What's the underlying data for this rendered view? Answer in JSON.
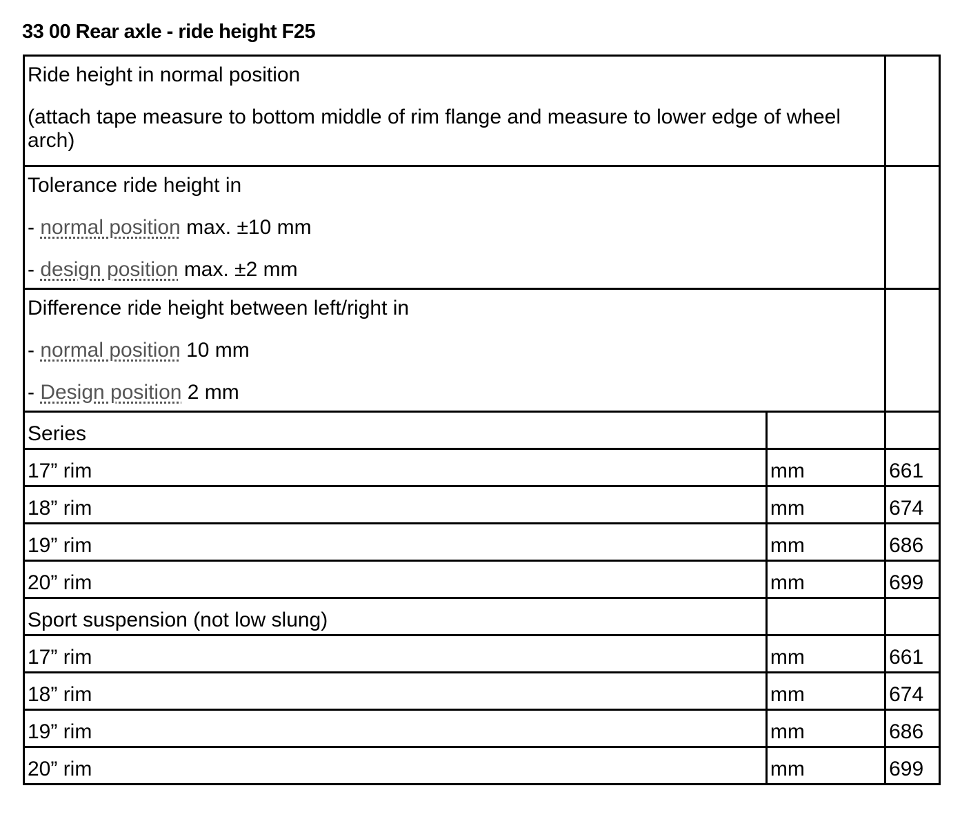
{
  "title": "33 00 Rear axle - ride height F25",
  "normal": {
    "line1": "Ride height in normal position",
    "line2": "(attach tape measure to bottom middle of rim flange and measure to lower edge of wheel arch)"
  },
  "tolerance": {
    "heading": "Tolerance ride height in",
    "items": [
      {
        "prefix": "- ",
        "link": "normal position",
        "suffix": " max. ±10 mm"
      },
      {
        "prefix": "- ",
        "link": "design position",
        "suffix": " max. ±2 mm"
      }
    ]
  },
  "difference": {
    "heading": "Difference ride height between left/right in",
    "items": [
      {
        "prefix": "- ",
        "link": "normal position",
        "suffix": " 10 mm"
      },
      {
        "prefix": "- ",
        "link": "Design position",
        "suffix": " 2 mm"
      }
    ]
  },
  "sections": [
    {
      "label": "Series",
      "rows": [
        {
          "rim": "17” rim",
          "unit": "mm",
          "value": "661"
        },
        {
          "rim": "18” rim",
          "unit": "mm",
          "value": "674"
        },
        {
          "rim": "19” rim",
          "unit": "mm",
          "value": "686"
        },
        {
          "rim": "20” rim",
          "unit": "mm",
          "value": "699"
        }
      ]
    },
    {
      "label": "Sport suspension (not low slung)",
      "rows": [
        {
          "rim": "17” rim",
          "unit": "mm",
          "value": "661"
        },
        {
          "rim": "18” rim",
          "unit": "mm",
          "value": "674"
        },
        {
          "rim": "19” rim",
          "unit": "mm",
          "value": "686"
        },
        {
          "rim": "20” rim",
          "unit": "mm",
          "value": "699"
        }
      ]
    }
  ]
}
